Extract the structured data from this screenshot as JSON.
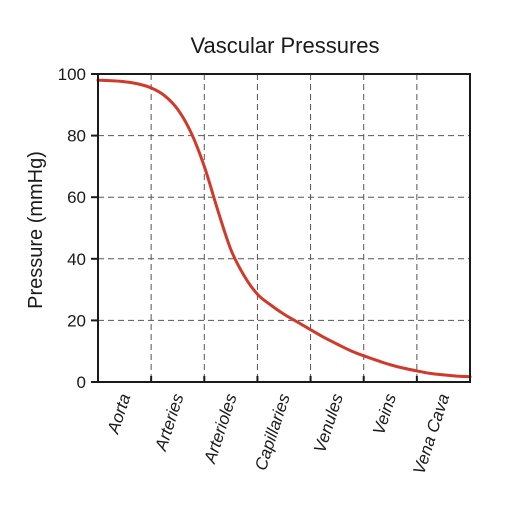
{
  "chart_data": {
    "type": "line",
    "title": "Vascular Pressures",
    "ylabel": "Pressure (mmHg)",
    "xlabel": "",
    "categories": [
      "Aorta",
      "Arteries",
      "Arterioles",
      "Capillaries",
      "Venules",
      "Veins",
      "Vena Cava"
    ],
    "ylim": [
      0,
      100
    ],
    "yticks": [
      0,
      20,
      40,
      60,
      80,
      100
    ],
    "grid": true,
    "legend": "none",
    "series": [
      {
        "color": "#d13a2a",
        "x": [
          0,
          0.25,
          0.5,
          0.75,
          1,
          1.25,
          1.5,
          1.75,
          2,
          2.25,
          2.5,
          2.75,
          3,
          3.25,
          3.5,
          3.75,
          4,
          4.25,
          4.5,
          4.75,
          5,
          5.25,
          5.5,
          5.75,
          6,
          6.25,
          6.5,
          6.75,
          7
        ],
        "values": [
          98,
          97.8,
          97.5,
          96.8,
          95.5,
          93,
          88.5,
          81,
          70,
          56,
          43,
          34.5,
          28.5,
          25,
          22,
          19.5,
          17,
          14.5,
          12.3,
          10.2,
          8.5,
          7,
          5.6,
          4.5,
          3.6,
          2.8,
          2.3,
          1.9,
          1.7
        ]
      }
    ]
  }
}
